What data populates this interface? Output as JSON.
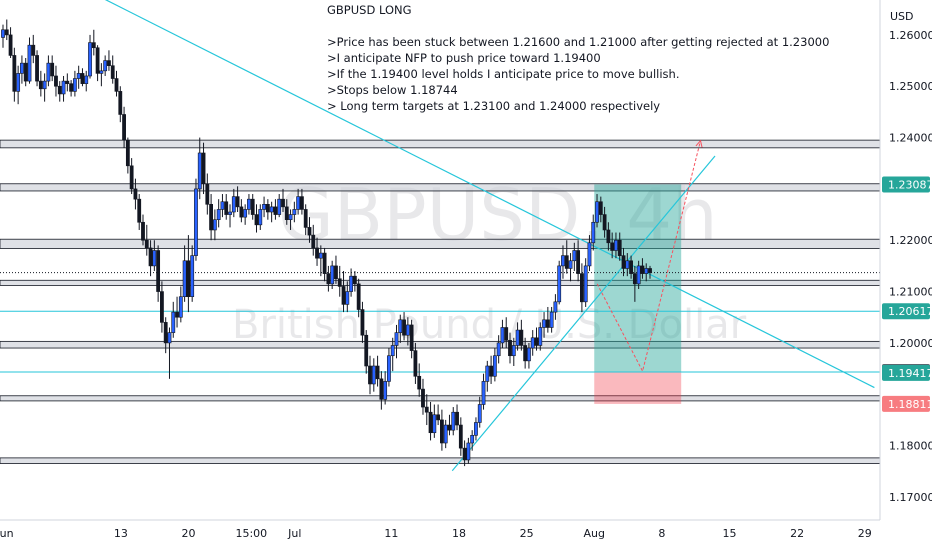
{
  "chart_data": {
    "type": "candlestick",
    "symbol": "GBPUSD, 4h",
    "instrument": "British Pound / U.S. Dollar",
    "currency": "USD",
    "y_range": [
      1.1655,
      1.2668
    ],
    "y_ticks": [
      "1.26000",
      "1.25000",
      "1.24000",
      "1.22000",
      "1.21000",
      "1.20000",
      "1.18000",
      "1.17000"
    ],
    "x_ticks": [
      {
        "label": "Jun",
        "day": 0
      },
      {
        "label": "13",
        "day": 12
      },
      {
        "label": "20",
        "day": 19
      },
      {
        "label": "15:00",
        "day": 25.5
      },
      {
        "label": "Jul",
        "day": 30
      },
      {
        "label": "11",
        "day": 40
      },
      {
        "label": "18",
        "day": 47
      },
      {
        "label": "25",
        "day": 54
      },
      {
        "label": "Aug",
        "day": 61
      },
      {
        "label": "8",
        "day": 68
      },
      {
        "label": "15",
        "day": 75
      },
      {
        "label": "22",
        "day": 82
      },
      {
        "label": "29",
        "day": 89
      }
    ],
    "price_labels": [
      {
        "value": "1.23087",
        "price": 1.23087,
        "bg": "#26a69a"
      },
      {
        "value": "1.20617",
        "price": 1.20617,
        "bg": "#26a69a"
      },
      {
        "value": "1.19432",
        "price": 1.19432,
        "bg": "#5d606b"
      },
      {
        "value": "1.19417",
        "price": 1.19417,
        "bg": "#26a69a"
      },
      {
        "value": "1.18811",
        "price": 1.18811,
        "bg": "#f77c80"
      }
    ],
    "annotation": {
      "title": "GBPUSD LONG",
      "lines": [
        ">Price has been stuck between 1.21600 and 1.21000 after getting rejected at 1.23000",
        ">I anticipate NFP to push price toward 1.19400",
        ">If the 1.19400 level holds I anticipate price to move bullish.",
        ">Stops below 1.18744",
        "> Long term targets at 1.23100 and 1.24000 respectively"
      ]
    },
    "zones": [
      {
        "top": 1.2395,
        "bottom": 1.238
      },
      {
        "top": 1.231,
        "bottom": 1.2296
      },
      {
        "top": 1.2202,
        "bottom": 1.2184
      },
      {
        "top": 1.2122,
        "bottom": 1.2112
      },
      {
        "top": 1.2003,
        "bottom": 1.199
      },
      {
        "top": 1.1897,
        "bottom": 1.1887
      },
      {
        "top": 1.1776,
        "bottom": 1.1765
      }
    ],
    "horizontal_lines": [
      1.20617,
      1.19432
    ],
    "current_price": 1.2137,
    "position": {
      "day_start": 61,
      "day_end": 70,
      "entry": 1.19432,
      "target": 1.23087,
      "stop": 1.18811
    },
    "trendlines": [
      {
        "x1": 5,
        "y1": 1.272,
        "x2": 90,
        "y2": 1.1913
      },
      {
        "x1": 46.3,
        "y1": 1.1751,
        "x2": 73.5,
        "y2": 1.2364
      }
    ],
    "projection": [
      {
        "day": 61.3,
        "price": 1.2115
      },
      {
        "day": 66,
        "price": 1.1945
      },
      {
        "day": 72,
        "price": 1.2394
      }
    ],
    "candles": [
      [
        1.2595,
        1.262,
        1.2575,
        1.261
      ],
      [
        1.261,
        1.263,
        1.259,
        1.26
      ],
      [
        1.26,
        1.2615,
        1.2555,
        1.256
      ],
      [
        1.256,
        1.2575,
        1.247,
        1.249
      ],
      [
        1.249,
        1.254,
        1.2465,
        1.2525
      ],
      [
        1.2525,
        1.256,
        1.2505,
        1.2545
      ],
      [
        1.2545,
        1.2555,
        1.25,
        1.251
      ],
      [
        1.251,
        1.2595,
        1.2505,
        1.258
      ],
      [
        1.258,
        1.26,
        1.2545,
        1.256
      ],
      [
        1.256,
        1.257,
        1.25,
        1.251
      ],
      [
        1.251,
        1.253,
        1.248,
        1.2495
      ],
      [
        1.2495,
        1.2525,
        1.247,
        1.251
      ],
      [
        1.251,
        1.256,
        1.25,
        1.2545
      ],
      [
        1.2545,
        1.256,
        1.251,
        1.252
      ],
      [
        1.252,
        1.254,
        1.248,
        1.25
      ],
      [
        1.25,
        1.251,
        1.247,
        1.2485
      ],
      [
        1.2485,
        1.252,
        1.247,
        1.251
      ],
      [
        1.251,
        1.2525,
        1.249,
        1.2505
      ],
      [
        1.2505,
        1.2512,
        1.248,
        1.249
      ],
      [
        1.249,
        1.253,
        1.248,
        1.2515
      ],
      [
        1.2515,
        1.254,
        1.2495,
        1.2525
      ],
      [
        1.2525,
        1.2535,
        1.25,
        1.2505
      ],
      [
        1.2505,
        1.253,
        1.249,
        1.252
      ],
      [
        1.252,
        1.26,
        1.2515,
        1.2585
      ],
      [
        1.2585,
        1.261,
        1.256,
        1.2575
      ],
      [
        1.2575,
        1.258,
        1.251,
        1.2525
      ],
      [
        1.2525,
        1.2545,
        1.25,
        1.253
      ],
      [
        1.253,
        1.256,
        1.252,
        1.255
      ],
      [
        1.255,
        1.257,
        1.253,
        1.254
      ],
      [
        1.254,
        1.256,
        1.2505,
        1.2515
      ],
      [
        1.2515,
        1.253,
        1.248,
        1.249
      ],
      [
        1.249,
        1.25,
        1.243,
        1.2445
      ],
      [
        1.2445,
        1.246,
        1.238,
        1.2395
      ],
      [
        1.2395,
        1.24,
        1.233,
        1.2345
      ],
      [
        1.2345,
        1.236,
        1.229,
        1.23
      ],
      [
        1.23,
        1.232,
        1.226,
        1.228
      ],
      [
        1.228,
        1.229,
        1.222,
        1.2235
      ],
      [
        1.2235,
        1.225,
        1.219,
        1.22
      ],
      [
        1.22,
        1.223,
        1.217,
        1.2185
      ],
      [
        1.2185,
        1.22,
        1.213,
        1.215
      ],
      [
        1.215,
        1.22,
        1.214,
        1.218
      ],
      [
        1.218,
        1.219,
        1.208,
        1.21
      ],
      [
        1.21,
        1.212,
        1.202,
        1.204
      ],
      [
        1.204,
        1.205,
        1.198,
        1.2
      ],
      [
        1.2,
        1.203,
        1.193,
        1.202
      ],
      [
        1.202,
        1.208,
        1.201,
        1.206
      ],
      [
        1.206,
        1.209,
        1.203,
        1.205
      ],
      [
        1.205,
        1.211,
        1.204,
        1.209
      ],
      [
        1.209,
        1.219,
        1.208,
        1.216
      ],
      [
        1.216,
        1.221,
        1.206,
        1.209
      ],
      [
        1.209,
        1.219,
        1.208,
        1.217
      ],
      [
        1.217,
        1.232,
        1.216,
        1.23
      ],
      [
        1.23,
        1.24,
        1.228,
        1.237
      ],
      [
        1.237,
        1.239,
        1.229,
        1.231
      ],
      [
        1.231,
        1.233,
        1.225,
        1.227
      ],
      [
        1.227,
        1.229,
        1.22,
        1.222
      ],
      [
        1.222,
        1.226,
        1.22,
        1.224
      ],
      [
        1.224,
        1.228,
        1.2225,
        1.226
      ],
      [
        1.226,
        1.229,
        1.2245,
        1.2275
      ],
      [
        1.2275,
        1.229,
        1.224,
        1.225
      ],
      [
        1.225,
        1.227,
        1.2225,
        1.2255
      ],
      [
        1.2255,
        1.23,
        1.2245,
        1.2285
      ],
      [
        1.2285,
        1.2305,
        1.2255,
        1.2265
      ],
      [
        1.2265,
        1.228,
        1.2235,
        1.2245
      ],
      [
        1.2245,
        1.227,
        1.223,
        1.226
      ],
      [
        1.226,
        1.229,
        1.225,
        1.228
      ],
      [
        1.228,
        1.229,
        1.224,
        1.225
      ],
      [
        1.225,
        1.227,
        1.2215,
        1.223
      ],
      [
        1.223,
        1.227,
        1.222,
        1.226
      ],
      [
        1.226,
        1.2285,
        1.2245,
        1.227
      ],
      [
        1.227,
        1.228,
        1.224,
        1.2255
      ],
      [
        1.2255,
        1.2275,
        1.2235,
        1.2265
      ],
      [
        1.2265,
        1.228,
        1.224,
        1.225
      ],
      [
        1.225,
        1.229,
        1.2245,
        1.228
      ],
      [
        1.228,
        1.23,
        1.2255,
        1.2265
      ],
      [
        1.2265,
        1.228,
        1.223,
        1.224
      ],
      [
        1.224,
        1.226,
        1.222,
        1.225
      ],
      [
        1.225,
        1.2275,
        1.2235,
        1.226
      ],
      [
        1.226,
        1.23,
        1.225,
        1.2285
      ],
      [
        1.2285,
        1.23,
        1.225,
        1.226
      ],
      [
        1.226,
        1.227,
        1.221,
        1.2225
      ],
      [
        1.2225,
        1.2245,
        1.2195,
        1.221
      ],
      [
        1.221,
        1.223,
        1.217,
        1.2185
      ],
      [
        1.2185,
        1.2205,
        1.215,
        1.2165
      ],
      [
        1.2165,
        1.219,
        1.213,
        1.2175
      ],
      [
        1.2175,
        1.2185,
        1.212,
        1.2135
      ],
      [
        1.2135,
        1.215,
        1.21,
        1.2115
      ],
      [
        1.2115,
        1.216,
        1.2105,
        1.215
      ],
      [
        1.215,
        1.217,
        1.2115,
        1.2125
      ],
      [
        1.2125,
        1.215,
        1.209,
        1.211
      ],
      [
        1.211,
        1.214,
        1.206,
        1.2075
      ],
      [
        1.2075,
        1.212,
        1.206,
        1.21
      ],
      [
        1.21,
        1.2145,
        1.209,
        1.213
      ],
      [
        1.213,
        1.214,
        1.21,
        1.2115
      ],
      [
        1.2115,
        1.2125,
        1.205,
        1.2065
      ],
      [
        1.2065,
        1.208,
        1.2,
        1.2015
      ],
      [
        1.2015,
        1.2025,
        1.194,
        1.1955
      ],
      [
        1.1955,
        1.1975,
        1.19,
        1.192
      ],
      [
        1.192,
        1.197,
        1.1905,
        1.1955
      ],
      [
        1.1955,
        1.1975,
        1.1915,
        1.193
      ],
      [
        1.193,
        1.1945,
        1.187,
        1.189
      ],
      [
        1.189,
        1.1945,
        1.188,
        1.1925
      ],
      [
        1.1925,
        1.199,
        1.1915,
        1.1975
      ],
      [
        1.1975,
        1.201,
        1.1945,
        1.1995
      ],
      [
        1.1995,
        1.2035,
        1.197,
        1.202
      ],
      [
        1.202,
        1.2055,
        1.2,
        1.2045
      ],
      [
        1.2045,
        1.206,
        1.2005,
        1.2015
      ],
      [
        1.2015,
        1.205,
        1.1995,
        1.2035
      ],
      [
        1.2035,
        1.2045,
        1.197,
        1.1985
      ],
      [
        1.1985,
        1.2,
        1.192,
        1.1935
      ],
      [
        1.1935,
        1.196,
        1.1895,
        1.191
      ],
      [
        1.191,
        1.193,
        1.186,
        1.1875
      ],
      [
        1.1875,
        1.19,
        1.184,
        1.1865
      ],
      [
        1.1865,
        1.1885,
        1.181,
        1.1825
      ],
      [
        1.1825,
        1.188,
        1.1815,
        1.186
      ],
      [
        1.186,
        1.188,
        1.184,
        1.185
      ],
      [
        1.185,
        1.187,
        1.179,
        1.1805
      ],
      [
        1.1805,
        1.185,
        1.1795,
        1.184
      ],
      [
        1.184,
        1.186,
        1.182,
        1.183
      ],
      [
        1.183,
        1.1875,
        1.182,
        1.1865
      ],
      [
        1.1865,
        1.188,
        1.183,
        1.184
      ],
      [
        1.184,
        1.1855,
        1.178,
        1.1795
      ],
      [
        1.1795,
        1.181,
        1.176,
        1.1772
      ],
      [
        1.1772,
        1.1815,
        1.1765,
        1.1805
      ],
      [
        1.1805,
        1.183,
        1.179,
        1.182
      ],
      [
        1.182,
        1.1855,
        1.181,
        1.1845
      ],
      [
        1.1845,
        1.1895,
        1.1835,
        1.188
      ],
      [
        1.188,
        1.194,
        1.187,
        1.1925
      ],
      [
        1.1925,
        1.1965,
        1.1905,
        1.1955
      ],
      [
        1.1955,
        1.1975,
        1.192,
        1.1935
      ],
      [
        1.1935,
        1.199,
        1.1925,
        1.1975
      ],
      [
        1.1975,
        1.2015,
        1.196,
        1.2
      ],
      [
        1.2,
        1.2045,
        1.199,
        1.203
      ],
      [
        1.203,
        1.205,
        1.199,
        1.2005
      ],
      [
        1.2005,
        1.202,
        1.196,
        1.1975
      ],
      [
        1.1975,
        1.201,
        1.1955,
        1.1995
      ],
      [
        1.1995,
        1.204,
        1.1985,
        1.2025
      ],
      [
        1.2025,
        1.2045,
        1.1985,
        1.1995
      ],
      [
        1.1995,
        1.201,
        1.195,
        1.1965
      ],
      [
        1.1965,
        1.2,
        1.195,
        1.199
      ],
      [
        1.199,
        1.2025,
        1.1975,
        1.201
      ],
      [
        1.201,
        1.203,
        1.1985,
        1.1995
      ],
      [
        1.1995,
        1.204,
        1.1985,
        1.203
      ],
      [
        1.203,
        1.206,
        1.201,
        1.2045
      ],
      [
        1.2045,
        1.207,
        1.202,
        1.203
      ],
      [
        1.203,
        1.207,
        1.202,
        1.206
      ],
      [
        1.206,
        1.2095,
        1.2045,
        1.208
      ],
      [
        1.208,
        1.216,
        1.2075,
        1.215
      ],
      [
        1.215,
        1.219,
        1.2125,
        1.217
      ],
      [
        1.217,
        1.22,
        1.2135,
        1.2145
      ],
      [
        1.2145,
        1.2175,
        1.212,
        1.216
      ],
      [
        1.216,
        1.2195,
        1.214,
        1.218
      ],
      [
        1.218,
        1.22,
        1.212,
        1.2135
      ],
      [
        1.2135,
        1.2155,
        1.206,
        1.208
      ],
      [
        1.208,
        1.2165,
        1.207,
        1.215
      ],
      [
        1.215,
        1.221,
        1.214,
        1.2195
      ],
      [
        1.2195,
        1.225,
        1.218,
        1.2235
      ],
      [
        1.2235,
        1.229,
        1.2225,
        1.2275
      ],
      [
        1.2275,
        1.2285,
        1.2235,
        1.225
      ],
      [
        1.225,
        1.2265,
        1.2205,
        1.222
      ],
      [
        1.222,
        1.2235,
        1.218,
        1.2195
      ],
      [
        1.2195,
        1.2215,
        1.2165,
        1.218
      ],
      [
        1.218,
        1.2215,
        1.2165,
        1.22
      ],
      [
        1.22,
        1.2215,
        1.216,
        1.217
      ],
      [
        1.217,
        1.2185,
        1.213,
        1.2145
      ],
      [
        1.2145,
        1.2175,
        1.213,
        1.216
      ],
      [
        1.216,
        1.217,
        1.2125,
        1.2135
      ],
      [
        1.2135,
        1.215,
        1.208,
        1.2115
      ],
      [
        1.2115,
        1.216,
        1.2105,
        1.215
      ],
      [
        1.215,
        1.2165,
        1.2125,
        1.2135
      ],
      [
        1.2135,
        1.2155,
        1.212,
        1.2145
      ],
      [
        1.2145,
        1.215,
        1.2125,
        1.2137
      ]
    ]
  }
}
